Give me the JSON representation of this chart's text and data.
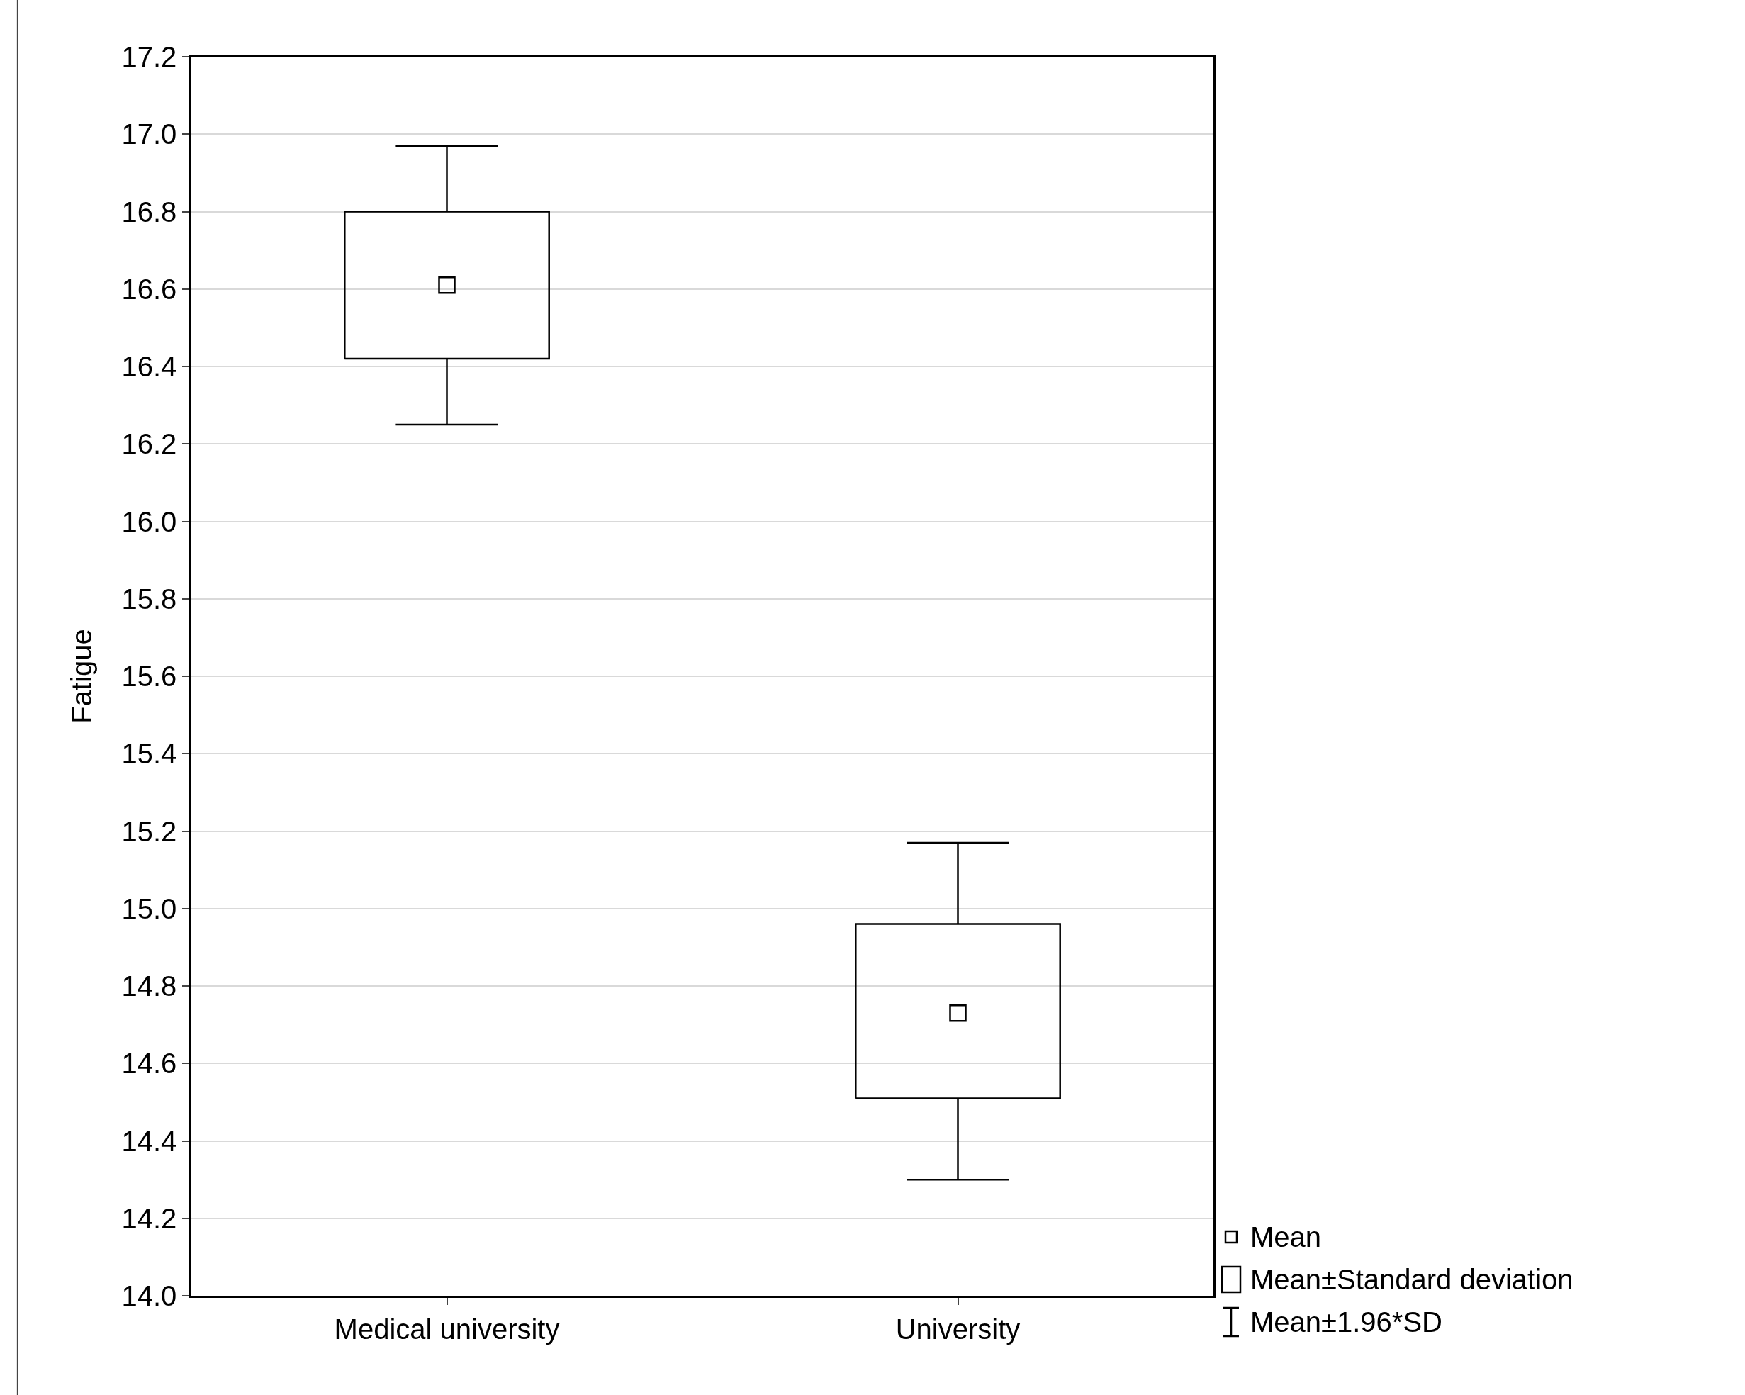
{
  "chart_data": {
    "type": "box",
    "ylabel": "Fatigue",
    "categories": [
      "Medical university",
      "University"
    ],
    "boxes": [
      {
        "low": 16.25,
        "q1": 16.42,
        "q3": 16.8,
        "high": 16.97,
        "mean": 16.61
      },
      {
        "low": 14.3,
        "q1": 14.51,
        "q3": 14.96,
        "high": 15.17,
        "mean": 14.73
      }
    ],
    "ylim": [
      14.0,
      17.2
    ],
    "yticks": [
      {
        "value": 14.0,
        "label": "14.0"
      },
      14.2,
      14.4,
      14.6,
      14.8,
      {
        "value": 15.0,
        "label": "15.0"
      },
      15.2,
      15.4,
      15.6,
      15.8,
      {
        "value": 16.0,
        "label": "16.0"
      },
      16.2,
      16.4,
      16.6,
      16.8,
      {
        "value": 17.0,
        "label": "17.0"
      },
      17.2
    ],
    "grid": "y",
    "marker": "square",
    "annotations": [
      "Mean",
      "Mean±Standard deviation",
      "Mean±1.96*SD"
    ]
  }
}
